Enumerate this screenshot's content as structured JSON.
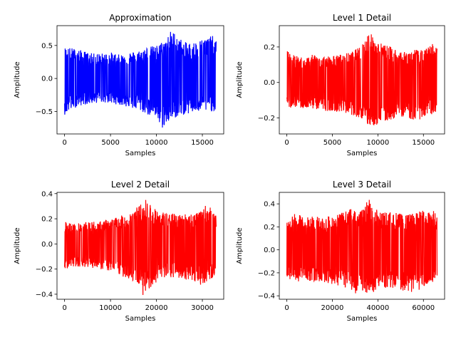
{
  "chart_data": [
    {
      "type": "line",
      "title": "Approximation",
      "xlabel": "Samples",
      "ylabel": "Amplitude",
      "color": "#0000ff",
      "n_samples": 16500,
      "xlim": [
        -825,
        17325
      ],
      "ylim": [
        -0.84,
        0.8
      ],
      "xticks": [
        0,
        5000,
        10000,
        15000
      ],
      "yticks": [
        -0.5,
        0.0,
        0.5
      ],
      "ytick_labels": [
        "−0.5",
        "0.0",
        "0.5"
      ],
      "envelope": {
        "x": [
          0,
          1000,
          2000,
          3000,
          4000,
          5000,
          6000,
          7000,
          8000,
          9000,
          10000,
          10500,
          11000,
          11500,
          12000,
          13000,
          14000,
          15000,
          16000,
          16500
        ],
        "upper": [
          0.48,
          0.46,
          0.42,
          0.38,
          0.38,
          0.4,
          0.36,
          0.4,
          0.42,
          0.48,
          0.5,
          0.55,
          0.6,
          0.72,
          0.7,
          0.55,
          0.55,
          0.6,
          0.65,
          0.62
        ],
        "lower": [
          -0.55,
          -0.45,
          -0.4,
          -0.38,
          -0.36,
          -0.38,
          -0.4,
          -0.44,
          -0.48,
          -0.55,
          -0.6,
          -0.78,
          -0.7,
          -0.65,
          -0.6,
          -0.55,
          -0.52,
          -0.5,
          -0.5,
          -0.48
        ]
      }
    },
    {
      "type": "line",
      "title": "Level 1 Detail",
      "xlabel": "Samples",
      "ylabel": "Amplitude",
      "color": "#ff0000",
      "n_samples": 16500,
      "xlim": [
        -825,
        17325
      ],
      "ylim": [
        -0.29,
        0.32
      ],
      "xticks": [
        0,
        5000,
        10000,
        15000
      ],
      "yticks": [
        -0.2,
        0.0,
        0.2
      ],
      "ytick_labels": [
        "−0.2",
        "0.0",
        "0.2"
      ],
      "envelope": {
        "x": [
          0,
          1000,
          2000,
          3000,
          4000,
          5000,
          6000,
          7000,
          8000,
          9000,
          10000,
          11000,
          12000,
          13000,
          14000,
          15000,
          16000,
          16500
        ],
        "upper": [
          0.18,
          0.15,
          0.14,
          0.16,
          0.15,
          0.15,
          0.16,
          0.17,
          0.2,
          0.29,
          0.23,
          0.21,
          0.19,
          0.17,
          0.19,
          0.18,
          0.22,
          0.2
        ],
        "lower": [
          -0.15,
          -0.14,
          -0.15,
          -0.15,
          -0.16,
          -0.16,
          -0.17,
          -0.18,
          -0.2,
          -0.25,
          -0.24,
          -0.22,
          -0.2,
          -0.19,
          -0.22,
          -0.2,
          -0.18,
          -0.17
        ]
      }
    },
    {
      "type": "line",
      "title": "Level 2 Detail",
      "xlabel": "Samples",
      "ylabel": "Amplitude",
      "color": "#ff0000",
      "n_samples": 33000,
      "xlim": [
        -1650,
        34650
      ],
      "ylim": [
        -0.44,
        0.41
      ],
      "xticks": [
        0,
        10000,
        20000,
        30000
      ],
      "yticks": [
        -0.4,
        -0.2,
        0.0,
        0.2,
        0.4
      ],
      "ytick_labels": [
        "−0.4",
        "−0.2",
        "0.0",
        "0.2",
        "0.4"
      ],
      "envelope": {
        "x": [
          0,
          2000,
          4000,
          6000,
          8000,
          10000,
          12000,
          14000,
          16000,
          17000,
          18000,
          19000,
          20000,
          22000,
          24000,
          26000,
          28000,
          30000,
          31000,
          32000,
          33000
        ],
        "upper": [
          0.18,
          0.16,
          0.17,
          0.18,
          0.18,
          0.2,
          0.22,
          0.25,
          0.3,
          0.33,
          0.37,
          0.3,
          0.27,
          0.25,
          0.24,
          0.24,
          0.25,
          0.26,
          0.33,
          0.28,
          0.22
        ],
        "lower": [
          -0.2,
          -0.18,
          -0.18,
          -0.19,
          -0.2,
          -0.22,
          -0.25,
          -0.28,
          -0.32,
          -0.41,
          -0.35,
          -0.38,
          -0.3,
          -0.28,
          -0.27,
          -0.28,
          -0.3,
          -0.33,
          -0.3,
          -0.28,
          -0.24
        ]
      }
    },
    {
      "type": "line",
      "title": "Level 3 Detail",
      "xlabel": "Samples",
      "ylabel": "Amplitude",
      "color": "#ff0000",
      "n_samples": 66000,
      "xlim": [
        -3300,
        69300
      ],
      "ylim": [
        -0.43,
        0.5
      ],
      "xticks": [
        0,
        20000,
        40000,
        60000
      ],
      "yticks": [
        -0.4,
        -0.2,
        0.0,
        0.2,
        0.4
      ],
      "ytick_labels": [
        "−0.4",
        "−0.2",
        "0.0",
        "0.2",
        "0.4"
      ],
      "envelope": {
        "x": [
          0,
          4000,
          8000,
          12000,
          16000,
          20000,
          24000,
          28000,
          30000,
          32000,
          34000,
          36000,
          38000,
          40000,
          44000,
          48000,
          52000,
          56000,
          60000,
          64000,
          66000
        ],
        "upper": [
          0.26,
          0.32,
          0.28,
          0.3,
          0.28,
          0.3,
          0.32,
          0.36,
          0.4,
          0.34,
          0.36,
          0.47,
          0.38,
          0.34,
          0.33,
          0.33,
          0.3,
          0.32,
          0.35,
          0.35,
          0.3
        ],
        "lower": [
          -0.25,
          -0.28,
          -0.26,
          -0.28,
          -0.28,
          -0.3,
          -0.32,
          -0.34,
          -0.38,
          -0.37,
          -0.36,
          -0.39,
          -0.37,
          -0.35,
          -0.33,
          -0.34,
          -0.36,
          -0.38,
          -0.32,
          -0.3,
          -0.26
        ]
      }
    }
  ]
}
